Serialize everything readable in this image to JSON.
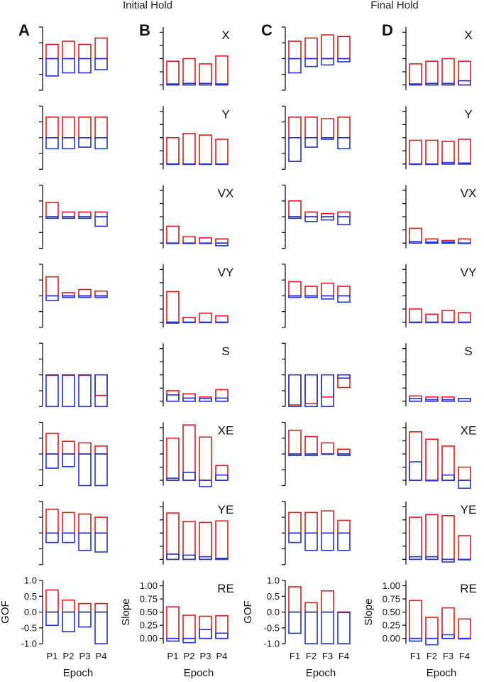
{
  "headers": {
    "initial": "Initial Hold",
    "final": "Final Hold"
  },
  "panel_letters": [
    "A",
    "B",
    "C",
    "D"
  ],
  "x_label": "Epoch",
  "y_label_gof": "GOF",
  "y_label_slope": "Slope",
  "colors": {
    "red": "#e01b1b",
    "blue": "#1f35d4"
  },
  "chart_data": {
    "type": "bar",
    "description_note": "Floating boxes per epoch; red box spans [0, red] and blue box spans [blue, 0] relative to zero line.",
    "variables": [
      "X",
      "Y",
      "VX",
      "VY",
      "S",
      "XE",
      "YE",
      "RE"
    ],
    "columns": [
      {
        "letter": "A",
        "metric": "GOF",
        "categories": [
          "P1",
          "P2",
          "P3",
          "P4"
        ],
        "ylim": [
          -1.0,
          1.0
        ],
        "ticks": [
          "1.0",
          "0.5",
          "0.0",
          "-0.5",
          "-1.0"
        ],
        "panels": [
          {
            "red": [
              0.45,
              0.55,
              0.45,
              0.65
            ],
            "blue": [
              -0.55,
              -0.45,
              -0.45,
              -0.35
            ]
          },
          {
            "red": [
              0.65,
              0.65,
              0.65,
              0.65
            ],
            "blue": [
              -0.35,
              -0.35,
              -0.3,
              -0.35
            ]
          },
          {
            "red": [
              0.45,
              0.15,
              0.15,
              0.15
            ],
            "blue": [
              -0.05,
              -0.05,
              -0.05,
              -0.3
            ]
          },
          {
            "red": [
              0.6,
              0.1,
              0.2,
              0.15
            ],
            "blue": [
              -0.15,
              -0.05,
              -0.05,
              -0.05
            ]
          },
          {
            "red": [
              0.0,
              0.0,
              0.0,
              -0.65
            ],
            "blue": [
              -1.0,
              -1.0,
              -1.0,
              -1.0
            ]
          },
          {
            "red": [
              0.65,
              0.4,
              0.35,
              0.25
            ],
            "blue": [
              -0.45,
              -0.4,
              -1.0,
              -1.0
            ]
          },
          {
            "red": [
              0.75,
              0.65,
              0.6,
              0.5
            ],
            "blue": [
              -0.3,
              -0.3,
              -0.55,
              -0.6
            ]
          },
          {
            "red": [
              0.7,
              0.38,
              0.27,
              0.27
            ],
            "blue": [
              -0.42,
              -0.62,
              -0.47,
              -1.0
            ]
          }
        ]
      },
      {
        "letter": "B",
        "metric": "Slope",
        "categories": [
          "P1",
          "P2",
          "P3",
          "P4"
        ],
        "ylim": [
          -0.1,
          1.1
        ],
        "ticks": [
          "1.00",
          "0.75",
          "0.50",
          "0.25",
          "0.00"
        ],
        "panels": [
          {
            "red": [
              0.45,
              0.5,
              0.4,
              0.55
            ],
            "blue": [
              0.02,
              0.03,
              0.03,
              0.02
            ]
          },
          {
            "red": [
              0.5,
              0.58,
              0.55,
              0.47
            ],
            "blue": [
              0.0,
              0.0,
              0.0,
              0.0
            ]
          },
          {
            "red": [
              0.32,
              0.12,
              0.1,
              0.08
            ],
            "blue": [
              0.0,
              0.0,
              0.0,
              -0.05
            ]
          },
          {
            "red": [
              0.58,
              0.09,
              0.17,
              0.12
            ],
            "blue": [
              -0.02,
              0.0,
              0.0,
              0.0
            ]
          },
          {
            "red": [
              0.2,
              0.14,
              0.08,
              0.22
            ],
            "blue": [
              0.12,
              0.06,
              0.05,
              0.06
            ]
          },
          {
            "red": [
              0.8,
              1.05,
              0.82,
              0.28
            ],
            "blue": [
              0.04,
              0.15,
              -0.12,
              0.1
            ]
          },
          {
            "red": [
              0.88,
              0.72,
              0.7,
              0.73
            ],
            "blue": [
              0.1,
              0.08,
              0.05,
              0.02
            ]
          },
          {
            "red": [
              0.6,
              0.44,
              0.42,
              0.43
            ],
            "blue": [
              -0.05,
              -0.08,
              0.17,
              0.1
            ]
          }
        ]
      },
      {
        "letter": "C",
        "metric": "GOF",
        "categories": [
          "F1",
          "F2",
          "F3",
          "F4"
        ],
        "ylim": [
          -1.0,
          1.0
        ],
        "ticks": [
          "1.0",
          "0.5",
          "0.0",
          "-0.5",
          "-1.0"
        ],
        "panels": [
          {
            "red": [
              0.55,
              0.65,
              0.75,
              0.7
            ],
            "blue": [
              -0.45,
              -0.25,
              -0.2,
              -0.1
            ]
          },
          {
            "red": [
              0.65,
              0.65,
              0.6,
              0.65
            ],
            "blue": [
              -0.75,
              -0.3,
              -0.05,
              -0.35
            ]
          },
          {
            "red": [
              0.5,
              0.15,
              0.1,
              0.15
            ],
            "blue": [
              -0.05,
              -0.15,
              -0.1,
              -0.25
            ]
          },
          {
            "red": [
              0.45,
              0.3,
              0.4,
              0.3
            ],
            "blue": [
              -0.05,
              -0.05,
              -0.1,
              -0.2
            ]
          },
          {
            "red": [
              -0.95,
              -0.9,
              -0.7,
              -0.4
            ],
            "blue": [
              -1.0,
              -1.0,
              -1.0,
              -0.1
            ]
          },
          {
            "red": [
              0.75,
              0.55,
              0.35,
              0.15
            ],
            "blue": [
              -0.05,
              -0.05,
              0.0,
              -0.05
            ]
          },
          {
            "red": [
              0.65,
              0.65,
              0.7,
              0.4
            ],
            "blue": [
              -0.3,
              -0.55,
              -0.55,
              -0.55
            ]
          },
          {
            "red": [
              0.8,
              0.3,
              0.67,
              0.0
            ],
            "blue": [
              -0.67,
              -1.0,
              -1.0,
              -1.0
            ]
          }
        ]
      },
      {
        "letter": "D",
        "metric": "Slope",
        "categories": [
          "F1",
          "F2",
          "F3",
          "F4"
        ],
        "ylim": [
          -0.1,
          1.1
        ],
        "ticks": [
          "1.00",
          "0.75",
          "0.50",
          "0.25",
          "0.00"
        ],
        "panels": [
          {
            "red": [
              0.4,
              0.45,
              0.5,
              0.45
            ],
            "blue": [
              0.02,
              0.03,
              0.03,
              0.08
            ]
          },
          {
            "red": [
              0.45,
              0.45,
              0.43,
              0.47
            ],
            "blue": [
              0.0,
              0.0,
              0.03,
              0.02
            ]
          },
          {
            "red": [
              0.28,
              0.08,
              0.05,
              0.08
            ],
            "blue": [
              0.03,
              0.02,
              0.02,
              0.0
            ]
          },
          {
            "red": [
              0.25,
              0.15,
              0.22,
              0.18
            ],
            "blue": [
              0.0,
              0.0,
              0.0,
              0.0
            ]
          },
          {
            "red": [
              0.1,
              0.08,
              0.08,
              0.05
            ],
            "blue": [
              0.05,
              0.03,
              0.03,
              0.05
            ]
          },
          {
            "red": [
              0.92,
              0.78,
              0.65,
              0.25
            ],
            "blue": [
              0.35,
              0.0,
              0.1,
              -0.15
            ]
          },
          {
            "red": [
              0.8,
              0.85,
              0.83,
              0.45
            ],
            "blue": [
              0.05,
              0.05,
              -0.05,
              0.0
            ]
          },
          {
            "red": [
              0.72,
              0.4,
              0.58,
              0.37
            ],
            "blue": [
              -0.05,
              -0.12,
              0.07,
              0.0
            ]
          }
        ]
      }
    ]
  }
}
